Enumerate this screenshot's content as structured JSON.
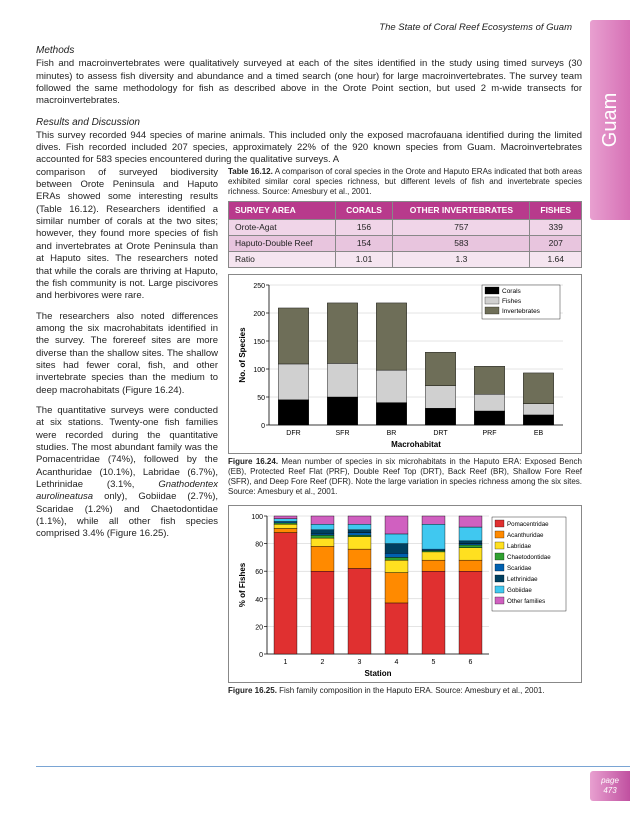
{
  "running_header": "The State of Coral Reef Ecosystems of Guam",
  "side_tab": "Guam",
  "page_label": "page",
  "page_number": "473",
  "methods_title": "Methods",
  "methods_body": "Fish and macroinvertebrates were qualitatively surveyed at each of the sites identified in the study using timed surveys (30 minutes) to assess fish diversity and abundance and a timed search (one hour) for large macroinvertebrates.  The survey team followed the same methodology for fish as described above in the Orote Point section, but used 2 m-wide transects for macroinvertebrates.",
  "results_title": "Results and Discussion",
  "results_intro": "This survey recorded 944 species of marine animals.  This included only the exposed macrofauana identified during the limited dives.  Fish recorded included 207 species, approximately 22% of the 920 known species from Guam.  Macroinvertebrates accounted for 583 species encountered during the qualitative surveys.  A",
  "left1": "comparison of surveyed biodiversity between Orote Peninsula and Haputo ERAs showed some interesting results (Table 16.12).  Researchers identified a similar number of corals at the two sites;  however, they found more species of fish and invertebrates at Orote Peninsula than at Haputo sites.  The researchers noted that while the corals are thriving at Haputo, the fish community is not.  Large piscivores and herbivores were rare.",
  "left2": "The researchers also noted differences among the six macrohabitats identified in the survey.  The forereef sites are more diverse than the shallow sites.  The shallow sites had fewer coral, fish, and other invertebrate species than the medium to deep macrohabitats (Figure 16.24).",
  "left3a": "The quantitative surveys were conducted at six stations.  Twenty-one fish families were recorded during the quantitative studies.  The most abundant family was the Pomacentridae (74%), followed by the Acanthuridae (10.1%), Labridae (6.7%), Lethrinidae (3.1%, ",
  "left3i": "Gnathodentex aurolineatusa",
  "left3b": " only), Gobiidae (2.7%), Scaridae (1.2%) and Chaetodontidae (1.1%), while all other fish species comprised 3.4% (Figure 16.25).",
  "table_caption_a": "Table 16.12.",
  "table_caption_b": "  A comparison of coral species in the Orote and Haputo ERAs indicated that both areas exhibited similar coral species richness, but different levels of fish and invertebrate species richness.  Source: Amesbury et al., 2001.",
  "table": {
    "headers": [
      "SURVEY AREA",
      "CORALS",
      "OTHER INVERTEBRATES",
      "FISHES"
    ],
    "rows": [
      [
        "Orote-Agat",
        "156",
        "757",
        "339"
      ],
      [
        "Haputo-Double Reef",
        "154",
        "583",
        "207"
      ],
      [
        "Ratio",
        "1.01",
        "1.3",
        "1.64"
      ]
    ]
  },
  "fig24_caption_a": "Figure 16.24.",
  "fig24_caption_b": "  Mean number of species in six microhabitats in the Haputo ERA:  Exposed Bench (EB), Protected Reef Flat (PRF), Double Reef Top (DRT), Back Reef (BR), Shallow Fore Reef (SFR), and Deep Fore Reef (DFR).  Note the large variation in species richness among the six sites.  Source:  Amesbury et al., 2001.",
  "fig25_caption_a": "Figure 16.25.",
  "fig25_caption_b": "  Fish family composition in the Haputo ERA.  Source:  Amesbury et al., 2001.",
  "chart24": {
    "type": "stacked-bar",
    "ylabel": "No. of Species",
    "xlabel": "Macrohabitat",
    "ylim": [
      0,
      250
    ],
    "ytick_step": 50,
    "categories": [
      "DFR",
      "SFR",
      "BR",
      "DRT",
      "PRF",
      "EB"
    ],
    "series": [
      {
        "name": "Corals",
        "color": "#000000",
        "values": [
          45,
          50,
          40,
          30,
          25,
          18
        ]
      },
      {
        "name": "Fishes",
        "color": "#d0d0d0",
        "values": [
          64,
          60,
          58,
          40,
          30,
          20
        ]
      },
      {
        "name": "Invertebrates",
        "color": "#6e6e58",
        "values": [
          100,
          108,
          120,
          60,
          50,
          55
        ]
      }
    ],
    "legend_pos": "top-right",
    "grid_color": "#c8c8c8",
    "background": "#ffffff",
    "bar_width": 0.62
  },
  "chart25": {
    "type": "stacked-bar",
    "ylabel": "% of Fishes",
    "xlabel": "Station",
    "ylim": [
      0,
      100
    ],
    "ytick_step": 20,
    "categories": [
      "1",
      "2",
      "3",
      "4",
      "5",
      "6"
    ],
    "series": [
      {
        "name": "Pomacentridae",
        "color": "#e03030",
        "values": [
          88,
          60,
          62,
          37,
          60,
          60
        ]
      },
      {
        "name": "Acanthuridae",
        "color": "#ff8a00",
        "values": [
          3,
          18,
          14,
          22,
          8,
          8
        ]
      },
      {
        "name": "Labridae",
        "color": "#ffe020",
        "values": [
          3,
          6,
          9,
          9,
          6,
          9
        ]
      },
      {
        "name": "Chaetodontidae",
        "color": "#30a030",
        "values": [
          1,
          2,
          1,
          2,
          1,
          2
        ]
      },
      {
        "name": "Scaridae",
        "color": "#0060b0",
        "values": [
          1,
          1,
          2,
          3,
          1,
          1
        ]
      },
      {
        "name": "Lethrinidae",
        "color": "#004060",
        "values": [
          0,
          3,
          2,
          7,
          0,
          2
        ]
      },
      {
        "name": "Gobiidae",
        "color": "#40c8f0",
        "values": [
          2,
          4,
          4,
          7,
          18,
          10
        ]
      },
      {
        "name": "Other families",
        "color": "#d060c0",
        "values": [
          2,
          6,
          6,
          13,
          6,
          8
        ]
      }
    ],
    "legend_pos": "right",
    "grid_color": "#c8c8c8",
    "background": "#ffffff",
    "bar_width": 0.62
  }
}
